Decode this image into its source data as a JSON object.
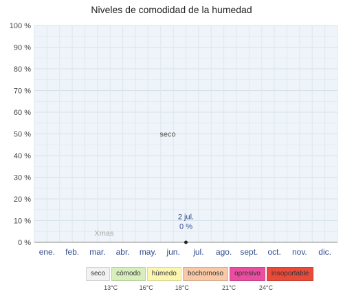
{
  "chart_data": {
    "type": "area",
    "title": "Niveles de comodidad de la humedad",
    "xlabel": "",
    "ylabel": "",
    "ylim": [
      0,
      100
    ],
    "y_ticks": [
      "0 %",
      "10 %",
      "20 %",
      "30 %",
      "40 %",
      "50 %",
      "60 %",
      "70 %",
      "80 %",
      "90 %",
      "100 %"
    ],
    "y_tick_values": [
      0,
      10,
      20,
      30,
      40,
      50,
      60,
      70,
      80,
      90,
      100
    ],
    "categories": [
      "ene.",
      "feb.",
      "mar.",
      "abr.",
      "may.",
      "jun.",
      "jul.",
      "ago.",
      "sept.",
      "oct.",
      "nov.",
      "dic."
    ],
    "series": [
      {
        "values": [
          0,
          0,
          0,
          0,
          0,
          0,
          0,
          0,
          0,
          0,
          0,
          0
        ]
      }
    ],
    "grid": true,
    "annotations": {
      "band_label_dry": "seco",
      "band_label_gray": "Xmas",
      "peak_date": "2 jul.",
      "peak_value": "0 %"
    },
    "legend": {
      "items": [
        {
          "label": "seco",
          "color": "#f2f2f2"
        },
        {
          "label": "cómodo",
          "color": "#d8eebd"
        },
        {
          "label": "húmedo",
          "color": "#fcf7b0"
        },
        {
          "label": "bochornoso",
          "color": "#f9c9a7"
        },
        {
          "label": "opresivo",
          "color": "#e94ea0"
        },
        {
          "label": "insoportable",
          "color": "#e94a3a"
        }
      ],
      "thresholds": [
        "13°C",
        "16°C",
        "18°C",
        "21°C",
        "24°C"
      ]
    }
  }
}
